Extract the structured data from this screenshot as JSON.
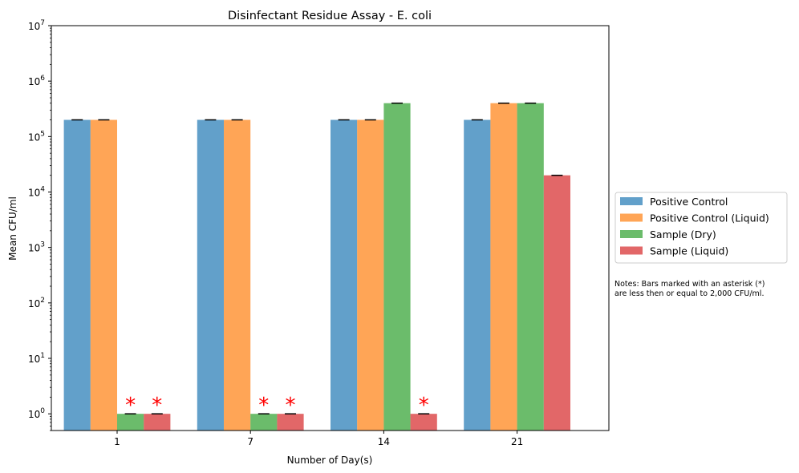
{
  "chart_data": {
    "type": "bar",
    "title": "Disinfectant Residue Assay - E. coli",
    "xlabel": "Number of Day(s)",
    "ylabel": "Mean CFU/ml",
    "yscale": "log",
    "ylim": [
      0.5,
      10000000
    ],
    "y_ticks": [
      {
        "base": "10",
        "exp": "0"
      },
      {
        "base": "10",
        "exp": "1"
      },
      {
        "base": "10",
        "exp": "2"
      },
      {
        "base": "10",
        "exp": "3"
      },
      {
        "base": "10",
        "exp": "4"
      },
      {
        "base": "10",
        "exp": "5"
      },
      {
        "base": "10",
        "exp": "6"
      },
      {
        "base": "10",
        "exp": "7"
      }
    ],
    "categories": [
      "1",
      "7",
      "14",
      "21"
    ],
    "series": [
      {
        "name": "Positive Control",
        "color": "#1f77b4",
        "values": [
          200000,
          200000,
          200000,
          200000
        ]
      },
      {
        "name": "Positive Control (Liquid)",
        "color": "#ff7f0e",
        "values": [
          200000,
          200000,
          200000,
          400000
        ]
      },
      {
        "name": "Sample (Dry)",
        "color": "#2ca02c",
        "values": [
          1,
          1,
          400000,
          400000
        ]
      },
      {
        "name": "Sample (Liquid)",
        "color": "#d62728",
        "values": [
          1,
          1,
          1,
          20000
        ]
      }
    ],
    "error_bars": true,
    "asterisk_marker": "*",
    "asterisk_color": "#ff0000",
    "asterisks": [
      [
        false,
        false,
        true,
        true
      ],
      [
        false,
        false,
        true,
        true
      ],
      [
        false,
        false,
        false,
        true
      ],
      [
        false,
        false,
        false,
        false
      ]
    ],
    "legend_placement": "right",
    "grid": false,
    "note_lines": [
      "Notes: Bars marked with an asterisk (*)",
      "are less then or equal to 2,000 CFU/ml."
    ]
  }
}
